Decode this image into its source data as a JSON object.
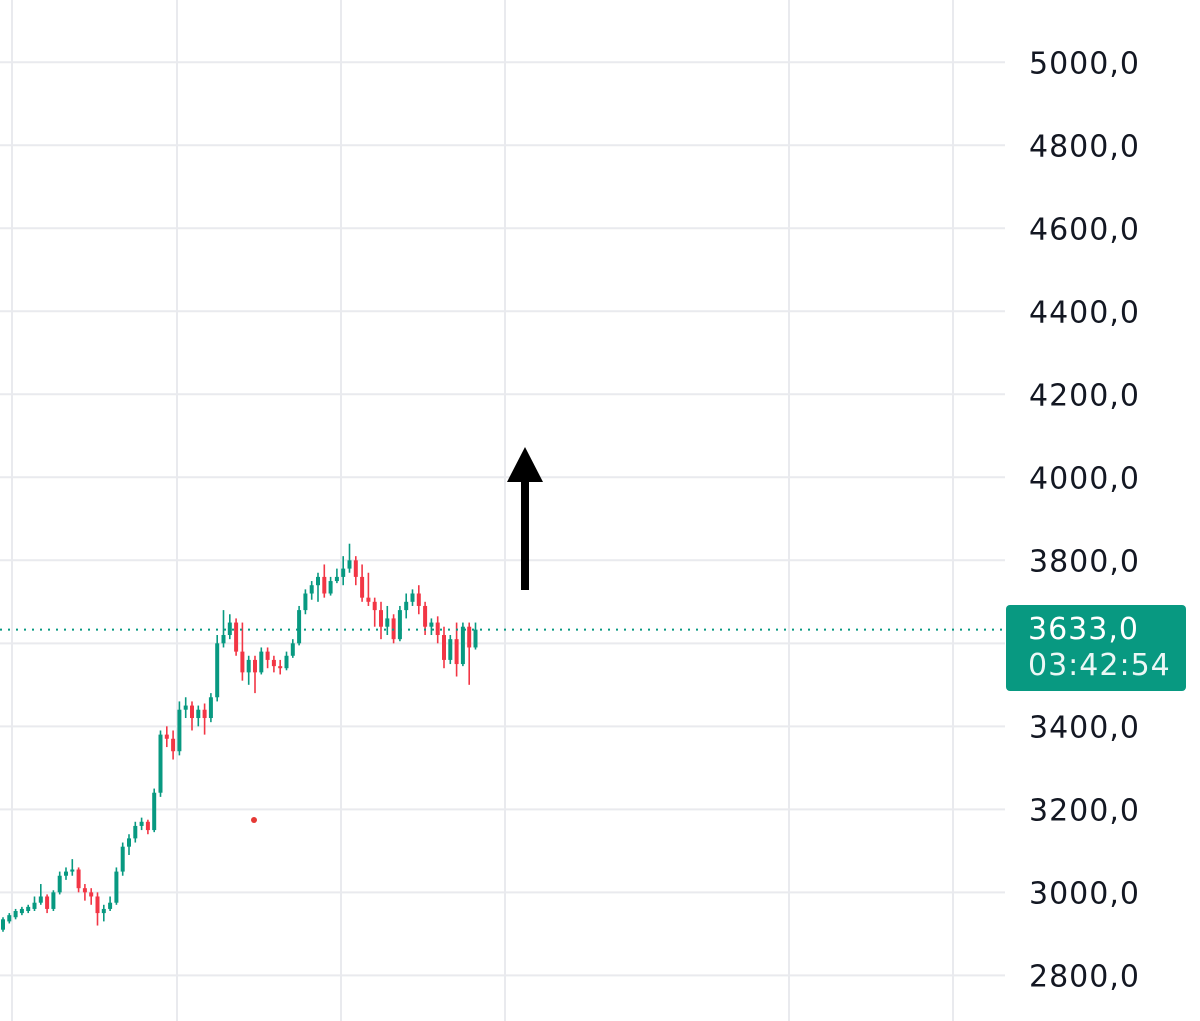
{
  "chart_data": {
    "type": "candlestick",
    "y_axis": {
      "ticks": [
        5000,
        4800,
        4600,
        4400,
        4200,
        4000,
        3800,
        3400,
        3200,
        3000,
        2800
      ],
      "tick_labels": [
        "5000,0",
        "4800,0",
        "4600,0",
        "4400,0",
        "4200,0",
        "4000,0",
        "3800,0",
        "3400,0",
        "3200,0",
        "3000,0",
        "2800,0"
      ],
      "ylim": [
        2690,
        5150
      ],
      "position": "right"
    },
    "grid": true,
    "last_price": {
      "value": 3633,
      "label": "3633,0",
      "countdown": "03:42:54",
      "color": "#089981"
    },
    "annotation": {
      "type": "up-arrow",
      "color": "#000000"
    },
    "colors": {
      "up": "#089981",
      "down": "#f23645",
      "grid": "#e9eaee",
      "dot": "#e53935"
    },
    "candles": [
      [
        2910,
        2935,
        2905,
        2940
      ],
      [
        2930,
        2945,
        2925,
        2950
      ],
      [
        2940,
        2955,
        2935,
        2960
      ],
      [
        2950,
        2960,
        2945,
        2965
      ],
      [
        2955,
        2965,
        2950,
        2970
      ],
      [
        2960,
        2975,
        2955,
        2990
      ],
      [
        2975,
        2990,
        2970,
        3020
      ],
      [
        2990,
        2960,
        2950,
        2995
      ],
      [
        2960,
        3000,
        2955,
        3005
      ],
      [
        3000,
        3040,
        2995,
        3050
      ],
      [
        3040,
        3050,
        3030,
        3060
      ],
      [
        3050,
        3055,
        3040,
        3080
      ],
      [
        3055,
        3010,
        3000,
        3060
      ],
      [
        3010,
        3000,
        2980,
        3020
      ],
      [
        3000,
        2990,
        2970,
        3010
      ],
      [
        2990,
        2950,
        2920,
        3000
      ],
      [
        2950,
        2960,
        2930,
        2970
      ],
      [
        2960,
        2975,
        2955,
        2990
      ],
      [
        2975,
        3050,
        2970,
        3060
      ],
      [
        3050,
        3110,
        3040,
        3120
      ],
      [
        3110,
        3130,
        3090,
        3140
      ],
      [
        3130,
        3160,
        3120,
        3170
      ],
      [
        3160,
        3170,
        3150,
        3180
      ],
      [
        3170,
        3150,
        3140,
        3175
      ],
      [
        3150,
        3240,
        3145,
        3250
      ],
      [
        3240,
        3380,
        3230,
        3390
      ],
      [
        3380,
        3370,
        3350,
        3400
      ],
      [
        3370,
        3340,
        3320,
        3390
      ],
      [
        3340,
        3440,
        3330,
        3460
      ],
      [
        3440,
        3450,
        3420,
        3470
      ],
      [
        3450,
        3420,
        3390,
        3460
      ],
      [
        3420,
        3440,
        3400,
        3450
      ],
      [
        3440,
        3420,
        3380,
        3455
      ],
      [
        3420,
        3470,
        3410,
        3480
      ],
      [
        3470,
        3600,
        3460,
        3620
      ],
      [
        3600,
        3620,
        3590,
        3680
      ],
      [
        3620,
        3650,
        3610,
        3670
      ],
      [
        3650,
        3580,
        3570,
        3660
      ],
      [
        3580,
        3530,
        3510,
        3650
      ],
      [
        3530,
        3560,
        3500,
        3570
      ],
      [
        3560,
        3530,
        3480,
        3570
      ],
      [
        3530,
        3580,
        3525,
        3590
      ],
      [
        3580,
        3560,
        3540,
        3590
      ],
      [
        3560,
        3545,
        3530,
        3570
      ],
      [
        3545,
        3540,
        3525,
        3560
      ],
      [
        3540,
        3570,
        3535,
        3580
      ],
      [
        3570,
        3600,
        3565,
        3610
      ],
      [
        3600,
        3680,
        3595,
        3690
      ],
      [
        3680,
        3720,
        3670,
        3730
      ],
      [
        3720,
        3740,
        3705,
        3750
      ],
      [
        3740,
        3760,
        3700,
        3770
      ],
      [
        3760,
        3720,
        3710,
        3790
      ],
      [
        3720,
        3750,
        3715,
        3760
      ],
      [
        3750,
        3760,
        3745,
        3780
      ],
      [
        3760,
        3780,
        3740,
        3810
      ],
      [
        3780,
        3800,
        3770,
        3840
      ],
      [
        3800,
        3760,
        3740,
        3810
      ],
      [
        3760,
        3710,
        3700,
        3790
      ],
      [
        3710,
        3700,
        3690,
        3770
      ],
      [
        3700,
        3680,
        3640,
        3710
      ],
      [
        3680,
        3640,
        3610,
        3700
      ],
      [
        3640,
        3660,
        3620,
        3690
      ],
      [
        3660,
        3610,
        3600,
        3670
      ],
      [
        3610,
        3680,
        3605,
        3690
      ],
      [
        3680,
        3700,
        3660,
        3720
      ],
      [
        3700,
        3720,
        3690,
        3730
      ],
      [
        3720,
        3690,
        3670,
        3740
      ],
      [
        3690,
        3640,
        3620,
        3700
      ],
      [
        3640,
        3650,
        3620,
        3660
      ],
      [
        3650,
        3620,
        3600,
        3665
      ],
      [
        3620,
        3560,
        3540,
        3640
      ],
      [
        3560,
        3610,
        3550,
        3620
      ],
      [
        3610,
        3550,
        3520,
        3650
      ],
      [
        3550,
        3640,
        3545,
        3650
      ],
      [
        3640,
        3590,
        3500,
        3650
      ],
      [
        3590,
        3633,
        3585,
        3650
      ]
    ],
    "candle_order": [
      "open",
      "close",
      "low",
      "high"
    ]
  }
}
